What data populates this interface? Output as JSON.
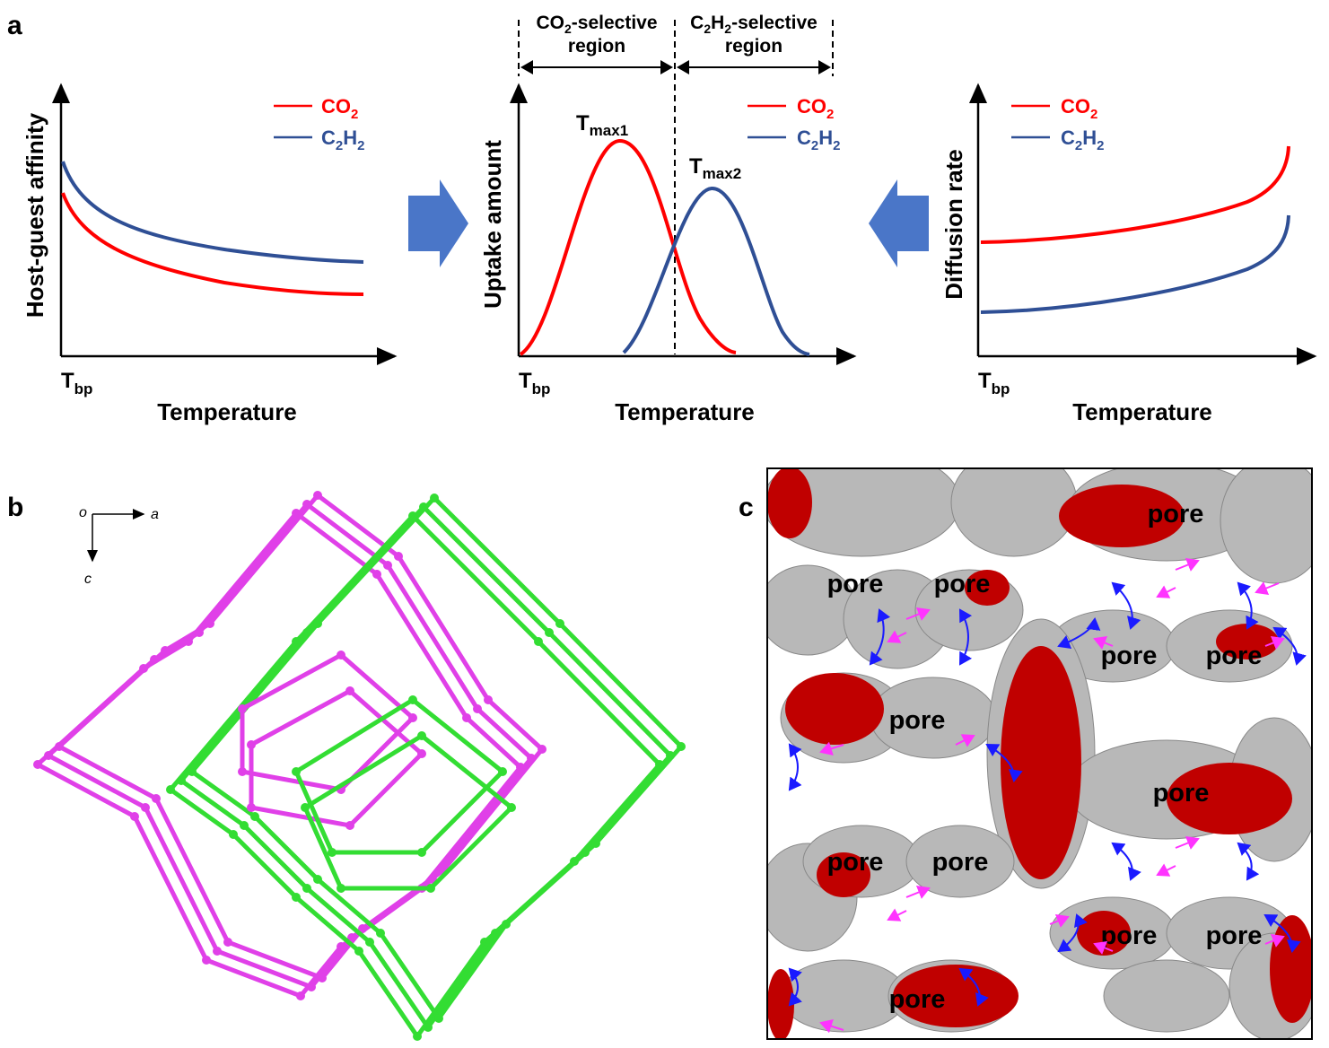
{
  "panels": {
    "a": {
      "label": "a",
      "left_plot": {
        "ylabel": "Host-guest affinity",
        "xlabel": "Temperature",
        "origin_label": "T",
        "origin_sub": "bp"
      },
      "middle_plot": {
        "ylabel": "Uptake amount",
        "xlabel": "Temperature",
        "origin_label": "T",
        "origin_sub": "bp",
        "peak1": "T",
        "peak1_sub": "max1",
        "peak2": "T",
        "peak2_sub": "max2",
        "region1_line1_pre": "CO",
        "region1_line1_sub": "2",
        "region1_line1_post": "-selective",
        "region1_line2": "region",
        "region2_line1_pre": "C",
        "region2_line1_sub1": "2",
        "region2_line1_mid": "H",
        "region2_line1_sub2": "2",
        "region2_line1_post": "-selective",
        "region2_line2": "region"
      },
      "right_plot": {
        "ylabel": "Diffusion rate",
        "xlabel": "Temperature",
        "origin_label": "T",
        "origin_sub": "bp"
      },
      "legend": {
        "co2": {
          "main": "CO",
          "sub": "2"
        },
        "c2h2": {
          "c": "C",
          "sub1": "2",
          "h": "H",
          "sub2": "2"
        }
      }
    },
    "b": {
      "label": "b",
      "axis_origin": "o",
      "axis_x": "a",
      "axis_y": "c"
    },
    "c": {
      "label": "c",
      "pore_label": "pore"
    }
  },
  "colors": {
    "co2": "#ff0000",
    "c2h2": "#2f4f95",
    "arrow": "#4a76c8",
    "magenta": "#e040e8",
    "green": "#33dd33",
    "pore_red": "#c00000",
    "surface": "#b8b8b8"
  }
}
